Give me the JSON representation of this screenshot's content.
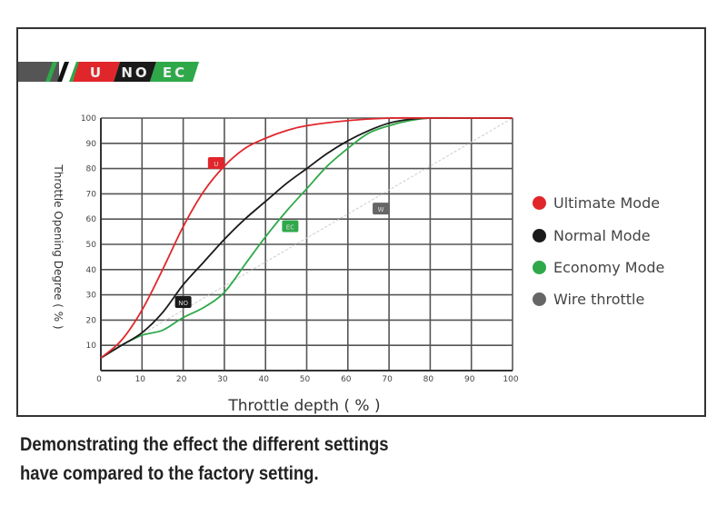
{
  "logo": {
    "segments": [
      "U",
      "NO",
      "EC"
    ],
    "colors": {
      "U": "#e0262b",
      "NO": "#1a1a1a",
      "EC": "#2fa84a"
    }
  },
  "caption": {
    "line1": "Demonstrating the effect the different settings",
    "line2": "have compared to the factory setting."
  },
  "chart_data": {
    "type": "line",
    "title": "",
    "xlabel": "Throttle depth ( % )",
    "ylabel": "Throttle Opening Degree ( % )",
    "xlim": [
      0,
      100
    ],
    "ylim": [
      0,
      100
    ],
    "xticks": [
      0,
      10,
      20,
      30,
      40,
      50,
      60,
      70,
      80,
      90,
      100
    ],
    "yticks": [
      10,
      20,
      30,
      40,
      50,
      60,
      70,
      80,
      90,
      100
    ],
    "grid": true,
    "legend_position": "right",
    "series": [
      {
        "name": "Ultimate Mode",
        "tag": "U",
        "color": "#e0262b",
        "label_at": [
          28,
          82
        ],
        "x": [
          0,
          5,
          10,
          15,
          20,
          25,
          30,
          35,
          40,
          45,
          50,
          60,
          70,
          80,
          90,
          100
        ],
        "y": [
          5,
          12,
          24,
          40,
          57,
          71,
          81,
          88,
          92,
          95,
          97,
          99,
          100,
          100,
          100,
          100
        ]
      },
      {
        "name": "Normal Mode",
        "tag": "NO",
        "color": "#1a1a1a",
        "label_at": [
          20,
          27
        ],
        "x": [
          0,
          5,
          10,
          15,
          20,
          25,
          30,
          35,
          40,
          45,
          50,
          55,
          60,
          65,
          70,
          75,
          80,
          90,
          100
        ],
        "y": [
          5,
          10,
          15,
          23,
          34,
          43,
          52,
          60,
          67,
          74,
          80,
          86,
          91,
          95,
          98,
          99.5,
          100,
          100,
          100
        ]
      },
      {
        "name": "Economy Mode",
        "tag": "EC",
        "color": "#2fa84a",
        "label_at": [
          46,
          57
        ],
        "x": [
          0,
          5,
          10,
          15,
          20,
          25,
          30,
          35,
          40,
          45,
          50,
          55,
          60,
          65,
          70,
          75,
          80,
          90,
          100
        ],
        "y": [
          5,
          10,
          14,
          16,
          21,
          25,
          31,
          42,
          53,
          63,
          72,
          81,
          88,
          94,
          97,
          99,
          100,
          100,
          100
        ]
      },
      {
        "name": "Wire throttle",
        "tag": "W",
        "color": "#666666",
        "line_color": "#cccccc",
        "dashed": true,
        "label_at": [
          68,
          64
        ],
        "x": [
          0,
          100
        ],
        "y": [
          5,
          100
        ]
      }
    ]
  }
}
